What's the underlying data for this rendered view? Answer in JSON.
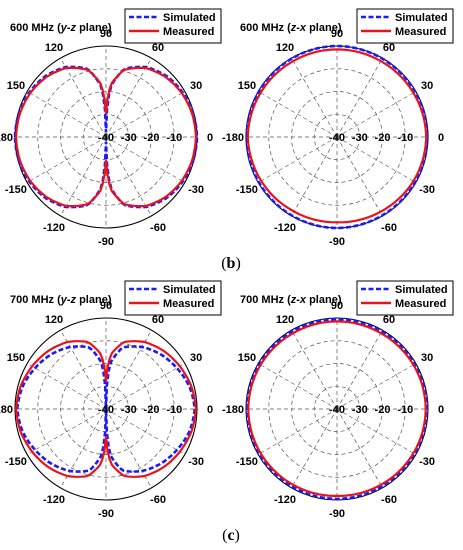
{
  "captions": [
    "(b)",
    "(c)"
  ],
  "chart_data": [
    {
      "type": "polar-line",
      "panel": "b-left",
      "title": {
        "prefix": "600 MHz (",
        "axis": "y-z",
        "suffix": " plane)"
      },
      "angle_ticks": [
        "90",
        "120",
        "150",
        "-180",
        "-150",
        "-120",
        "-90",
        "-60",
        "-30",
        "0",
        "30",
        "60"
      ],
      "radial_ticks": [
        "-40",
        "-30",
        "-20",
        "-10"
      ],
      "r_range": [
        -40,
        0
      ],
      "legend": "top-right",
      "series": [
        {
          "name": "Simulated",
          "color": "#1a1aff",
          "style": "dashed",
          "angles": [
            0,
            15,
            30,
            45,
            60,
            75,
            85,
            88,
            90,
            92,
            95,
            105,
            120,
            135,
            150,
            165,
            180,
            195,
            210,
            225,
            240,
            255,
            265,
            268,
            270,
            272,
            275,
            285,
            300,
            315,
            330,
            345
          ],
          "values": [
            0,
            -0.3,
            -1,
            -2.2,
            -4.5,
            -9,
            -18,
            -28,
            -38,
            -28,
            -18,
            -9,
            -4.5,
            -2.2,
            -1,
            -0.3,
            0,
            -0.3,
            -1,
            -2.2,
            -4.5,
            -9,
            -18,
            -28,
            -38,
            -28,
            -18,
            -9,
            -4.5,
            -2.2,
            -1,
            -0.3
          ]
        },
        {
          "name": "Measured",
          "color": "#e8141b",
          "style": "solid",
          "angles": [
            0,
            15,
            30,
            45,
            60,
            75,
            85,
            88,
            90,
            92,
            95,
            105,
            120,
            135,
            150,
            165,
            180,
            195,
            210,
            225,
            240,
            255,
            265,
            268,
            270,
            272,
            275,
            285,
            300,
            315,
            330,
            345
          ],
          "values": [
            -0.5,
            -0.8,
            -1.5,
            -2.8,
            -5,
            -9.5,
            -17,
            -24,
            -30,
            -24,
            -17,
            -9.5,
            -5,
            -2.8,
            -1.5,
            -0.8,
            -0.5,
            -0.8,
            -1.5,
            -2.8,
            -5,
            -9.5,
            -17,
            -24,
            -30,
            -24,
            -17,
            -9.5,
            -5,
            -2.8,
            -1.5,
            -0.8
          ]
        }
      ]
    },
    {
      "type": "polar-line",
      "panel": "b-right",
      "title": {
        "prefix": "600 MHz (",
        "axis": "z-x",
        "suffix": " plane)"
      },
      "angle_ticks": [
        "90",
        "120",
        "150",
        "-180",
        "-150",
        "-120",
        "-90",
        "-60",
        "-30",
        "0",
        "30",
        "60"
      ],
      "radial_ticks": [
        "-40",
        "-30",
        "-20",
        "-10"
      ],
      "r_range": [
        -40,
        0
      ],
      "legend": "top-right",
      "series": [
        {
          "name": "Simulated",
          "color": "#1a1aff",
          "style": "dashed",
          "angles": [
            0,
            30,
            60,
            90,
            120,
            150,
            180,
            210,
            240,
            270,
            300,
            330
          ],
          "values": [
            -0.3,
            -0.3,
            -0.2,
            0,
            -0.2,
            -0.3,
            -0.3,
            -0.3,
            -0.2,
            0,
            -0.2,
            -0.3
          ]
        },
        {
          "name": "Measured",
          "color": "#e8141b",
          "style": "solid",
          "angles": [
            0,
            30,
            60,
            90,
            120,
            150,
            180,
            210,
            240,
            270,
            300,
            330
          ],
          "values": [
            -0.8,
            -1.2,
            -1.5,
            -1.5,
            -1.5,
            -1.2,
            -0.8,
            -1.2,
            -2,
            -2.5,
            -2.2,
            -1.5
          ]
        }
      ]
    },
    {
      "type": "polar-line",
      "panel": "c-left",
      "title": {
        "prefix": "700 MHz (",
        "axis": "y-z",
        "suffix": " plane)"
      },
      "angle_ticks": [
        "90",
        "120",
        "150",
        "-180",
        "-150",
        "-120",
        "-90",
        "-60",
        "-30",
        "0",
        "30",
        "60"
      ],
      "radial_ticks": [
        "-40",
        "-30",
        "-20",
        "-10"
      ],
      "r_range": [
        -40,
        0
      ],
      "legend": "top-right",
      "series": [
        {
          "name": "Simulated",
          "color": "#1a1aff",
          "style": "dashed",
          "angles": [
            0,
            15,
            30,
            45,
            60,
            75,
            85,
            88,
            90,
            92,
            95,
            105,
            120,
            135,
            150,
            165,
            180,
            195,
            210,
            225,
            240,
            255,
            265,
            268,
            270,
            272,
            275,
            285,
            300,
            315,
            330,
            345
          ],
          "values": [
            -1,
            -2,
            -4,
            -6,
            -8.5,
            -12,
            -20,
            -30,
            -40,
            -30,
            -20,
            -12,
            -8.5,
            -6,
            -4,
            -2,
            -1,
            -2,
            -4,
            -6,
            -8.5,
            -12,
            -20,
            -30,
            -40,
            -30,
            -20,
            -12,
            -8.5,
            -6,
            -4,
            -2
          ]
        },
        {
          "name": "Measured",
          "color": "#e8141b",
          "style": "solid",
          "angles": [
            0,
            15,
            30,
            45,
            60,
            75,
            85,
            88,
            90,
            92,
            95,
            105,
            120,
            135,
            150,
            165,
            180,
            195,
            210,
            225,
            240,
            255,
            265,
            268,
            270,
            272,
            275,
            285,
            300,
            315,
            330,
            345
          ],
          "values": [
            -0.5,
            -1.2,
            -2.5,
            -4,
            -6,
            -9.5,
            -16,
            -22,
            -28,
            -22,
            -16,
            -9.5,
            -6,
            -4,
            -2.5,
            -1.2,
            -0.5,
            -1.2,
            -2.5,
            -4,
            -6,
            -9.5,
            -16,
            -22,
            -28,
            -22,
            -16,
            -9.5,
            -6,
            -4,
            -2.5,
            -1.2
          ]
        }
      ]
    },
    {
      "type": "polar-line",
      "panel": "c-right",
      "title": {
        "prefix": "700 MHz (",
        "axis": "z-x",
        "suffix": " plane)"
      },
      "angle_ticks": [
        "90",
        "120",
        "150",
        "-180",
        "-150",
        "-120",
        "-90",
        "-60",
        "-30",
        "0",
        "30",
        "60"
      ],
      "radial_ticks": [
        "-40",
        "-30",
        "-20",
        "-10"
      ],
      "r_range": [
        -40,
        0
      ],
      "legend": "top-right",
      "series": [
        {
          "name": "Simulated",
          "color": "#1a1aff",
          "style": "dashed",
          "angles": [
            0,
            30,
            60,
            90,
            120,
            150,
            180,
            210,
            240,
            270,
            300,
            330
          ],
          "values": [
            -0.5,
            -0.6,
            -0.6,
            -0.5,
            -0.6,
            -0.6,
            -0.5,
            -0.6,
            -0.6,
            -0.5,
            -0.6,
            -0.6
          ]
        },
        {
          "name": "Measured",
          "color": "#e8141b",
          "style": "solid",
          "angles": [
            0,
            30,
            60,
            90,
            120,
            150,
            180,
            210,
            240,
            270,
            300,
            330
          ],
          "values": [
            -1,
            -1.2,
            -1.5,
            -1.5,
            -1.5,
            -1.2,
            -1,
            -1.2,
            -1.5,
            -1.8,
            -1.5,
            -1.2
          ]
        }
      ]
    }
  ]
}
